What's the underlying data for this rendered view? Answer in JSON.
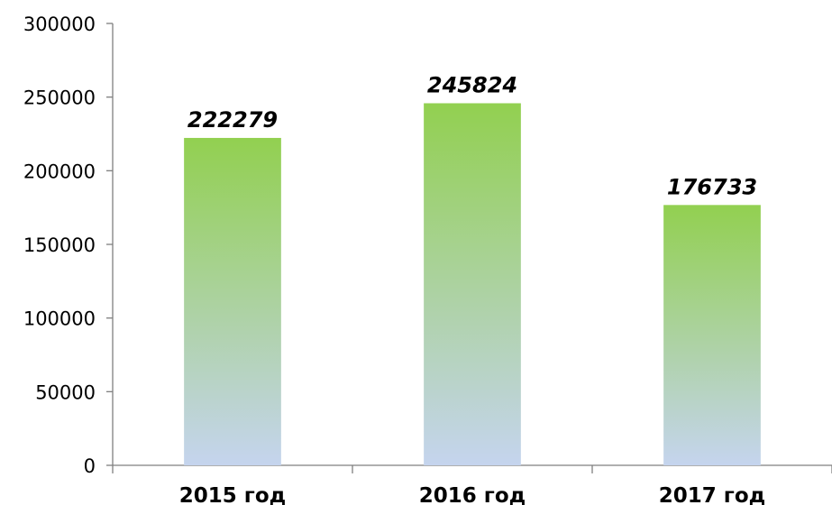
{
  "chart_data": {
    "type": "bar",
    "title": "",
    "xlabel": "",
    "ylabel": "",
    "categories": [
      "2015 год",
      "2016 год",
      "2017 год"
    ],
    "values": [
      222279,
      245824,
      176733
    ],
    "data_labels": [
      "222279",
      "245824",
      "176733"
    ],
    "ylim": [
      0,
      300000
    ],
    "yticks": [
      0,
      50000,
      100000,
      150000,
      200000,
      250000,
      300000
    ],
    "ytick_labels": [
      "0",
      "50000",
      "100000",
      "150000",
      "200000",
      "250000",
      "300000"
    ],
    "grid": false,
    "legend": "none",
    "bar_gradient": {
      "top": "#92d050",
      "bottom": "#c5d4ee"
    },
    "axis_color": "#7f7f7f"
  }
}
